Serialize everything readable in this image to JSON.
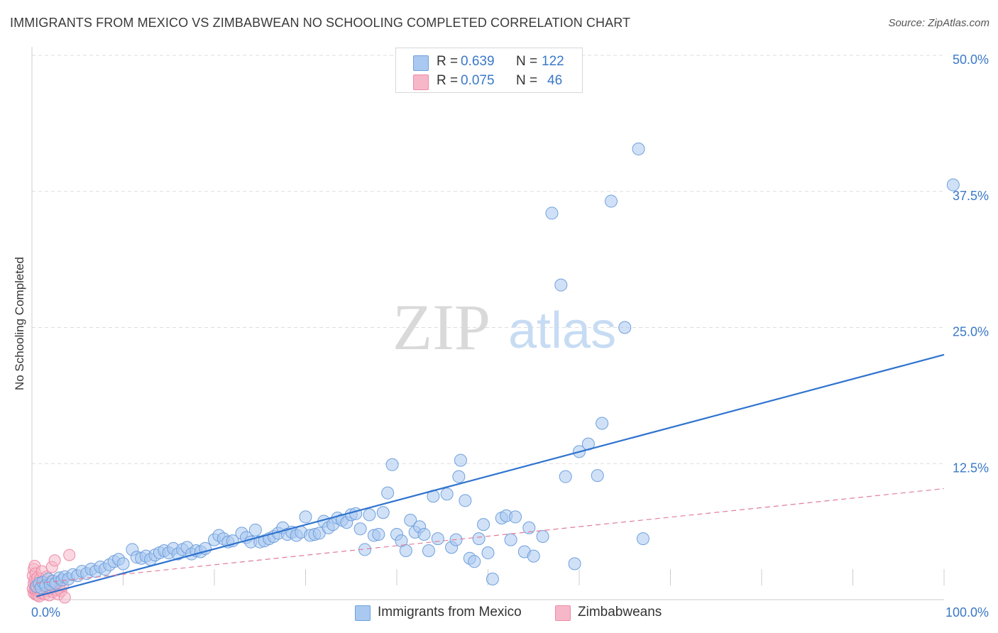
{
  "header": {
    "title": "IMMIGRANTS FROM MEXICO VS ZIMBABWEAN NO SCHOOLING COMPLETED CORRELATION CHART",
    "source": "Source: ZipAtlas.com"
  },
  "watermark": {
    "zip": "ZIP",
    "atlas": "atlas"
  },
  "legend_top": [
    {
      "r_label": "R =",
      "r_value": "0.639",
      "n_label": "N =",
      "n_value": "122"
    },
    {
      "r_label": "R =",
      "r_value": "0.075",
      "n_label": "N =",
      "n_value": "46"
    }
  ],
  "colors": {
    "mexico_fill": "#aac9f0",
    "mexico_stroke": "#6fa0dc",
    "mexico_line": "#2f73cf",
    "zimb_fill": "#f6b8c8",
    "zimb_stroke": "#ee8aa6",
    "zimb_line": "#e07c98",
    "grid": "#dddddd",
    "tick_text": "#3a78c8"
  },
  "chart_data": {
    "type": "scatter",
    "title": "IMMIGRANTS FROM MEXICO VS ZIMBABWEAN NO SCHOOLING COMPLETED CORRELATION CHART",
    "xlabel": "",
    "ylabel": "No Schooling Completed",
    "xlim": [
      0,
      100
    ],
    "ylim": [
      0,
      50
    ],
    "x_tick_labels": [
      "0.0%",
      "100.0%"
    ],
    "y_ticks": [
      12.5,
      25.0,
      37.5,
      50.0
    ],
    "y_tick_labels": [
      "12.5%",
      "25.0%",
      "37.5%",
      "50.0%"
    ],
    "grid": true,
    "legend_position": "top-center",
    "series": [
      {
        "name": "Immigrants from Mexico",
        "r": 0.639,
        "n": 122,
        "trend": {
          "x": [
            0.5,
            100
          ],
          "y": [
            0.3,
            22.5
          ]
        },
        "points": [
          [
            0.5,
            1.2
          ],
          [
            0.8,
            1.5
          ],
          [
            1.0,
            1.1
          ],
          [
            1.2,
            1.6
          ],
          [
            1.5,
            1.3
          ],
          [
            1.8,
            1.9
          ],
          [
            2.0,
            1.4
          ],
          [
            2.3,
            1.7
          ],
          [
            2.6,
            1.5
          ],
          [
            3.0,
            2.0
          ],
          [
            3.3,
            1.8
          ],
          [
            3.6,
            2.1
          ],
          [
            4.0,
            1.9
          ],
          [
            4.5,
            2.3
          ],
          [
            5.0,
            2.2
          ],
          [
            5.5,
            2.6
          ],
          [
            6.0,
            2.4
          ],
          [
            6.5,
            2.8
          ],
          [
            7.0,
            2.6
          ],
          [
            7.5,
            3.0
          ],
          [
            8.0,
            2.8
          ],
          [
            8.5,
            3.2
          ],
          [
            9.0,
            3.5
          ],
          [
            9.5,
            3.7
          ],
          [
            10.0,
            3.3
          ],
          [
            11.0,
            4.6
          ],
          [
            11.5,
            3.9
          ],
          [
            12.0,
            3.8
          ],
          [
            12.5,
            4.0
          ],
          [
            13.0,
            3.7
          ],
          [
            13.5,
            4.1
          ],
          [
            14.0,
            4.3
          ],
          [
            14.5,
            4.5
          ],
          [
            15.0,
            4.3
          ],
          [
            15.5,
            4.7
          ],
          [
            16.0,
            4.2
          ],
          [
            16.5,
            4.6
          ],
          [
            17.0,
            4.8
          ],
          [
            17.5,
            4.2
          ],
          [
            18.0,
            4.5
          ],
          [
            18.5,
            4.4
          ],
          [
            19.0,
            4.7
          ],
          [
            20.0,
            5.5
          ],
          [
            20.5,
            5.9
          ],
          [
            21.0,
            5.6
          ],
          [
            21.5,
            5.3
          ],
          [
            22.0,
            5.4
          ],
          [
            23.0,
            6.1
          ],
          [
            23.5,
            5.7
          ],
          [
            24.0,
            5.3
          ],
          [
            24.5,
            6.4
          ],
          [
            25.0,
            5.3
          ],
          [
            25.5,
            5.4
          ],
          [
            26.0,
            5.6
          ],
          [
            26.5,
            5.8
          ],
          [
            27.0,
            6.1
          ],
          [
            27.5,
            6.6
          ],
          [
            28.0,
            6.0
          ],
          [
            28.5,
            6.2
          ],
          [
            29.0,
            5.9
          ],
          [
            29.5,
            6.2
          ],
          [
            30.0,
            7.6
          ],
          [
            30.5,
            5.9
          ],
          [
            31.0,
            6.0
          ],
          [
            31.5,
            6.1
          ],
          [
            32.0,
            7.2
          ],
          [
            32.5,
            6.6
          ],
          [
            33.0,
            6.9
          ],
          [
            33.5,
            7.5
          ],
          [
            34.0,
            7.3
          ],
          [
            34.5,
            7.1
          ],
          [
            35.0,
            7.8
          ],
          [
            35.5,
            7.9
          ],
          [
            36.0,
            6.5
          ],
          [
            36.5,
            4.6
          ],
          [
            37.0,
            7.8
          ],
          [
            37.5,
            5.9
          ],
          [
            38.0,
            6.0
          ],
          [
            38.5,
            8.0
          ],
          [
            39.0,
            9.8
          ],
          [
            39.5,
            12.4
          ],
          [
            40.0,
            6.0
          ],
          [
            40.5,
            5.4
          ],
          [
            41.0,
            4.5
          ],
          [
            41.5,
            7.3
          ],
          [
            42.0,
            6.2
          ],
          [
            42.5,
            6.7
          ],
          [
            43.0,
            6.0
          ],
          [
            43.5,
            4.5
          ],
          [
            44.0,
            9.5
          ],
          [
            44.5,
            5.6
          ],
          [
            45.5,
            9.7
          ],
          [
            46.0,
            4.8
          ],
          [
            46.5,
            5.5
          ],
          [
            46.8,
            11.3
          ],
          [
            47.0,
            12.8
          ],
          [
            47.5,
            9.1
          ],
          [
            48.0,
            3.8
          ],
          [
            48.5,
            3.5
          ],
          [
            49.0,
            5.6
          ],
          [
            49.5,
            6.9
          ],
          [
            50.0,
            4.3
          ],
          [
            50.5,
            1.9
          ],
          [
            51.5,
            7.5
          ],
          [
            52.0,
            7.7
          ],
          [
            52.5,
            5.5
          ],
          [
            53.0,
            7.6
          ],
          [
            54.0,
            4.4
          ],
          [
            54.5,
            6.6
          ],
          [
            55.0,
            4.0
          ],
          [
            56.0,
            5.8
          ],
          [
            57.0,
            35.5
          ],
          [
            58.0,
            28.9
          ],
          [
            58.5,
            11.3
          ],
          [
            59.5,
            3.3
          ],
          [
            60.0,
            13.6
          ],
          [
            61.0,
            14.3
          ],
          [
            62.0,
            11.4
          ],
          [
            62.5,
            16.2
          ],
          [
            63.5,
            36.6
          ],
          [
            65.0,
            25.0
          ],
          [
            66.5,
            41.4
          ],
          [
            67.0,
            5.6
          ],
          [
            101.0,
            38.1
          ]
        ]
      },
      {
        "name": "Zimbabweans",
        "r": 0.075,
        "n": 46,
        "trend": {
          "x": [
            0.5,
            100
          ],
          "y": [
            1.5,
            10.2
          ]
        },
        "points": [
          [
            0.1,
            1.0
          ],
          [
            0.1,
            2.2
          ],
          [
            0.2,
            0.6
          ],
          [
            0.2,
            1.5
          ],
          [
            0.2,
            2.8
          ],
          [
            0.3,
            0.9
          ],
          [
            0.3,
            1.8
          ],
          [
            0.3,
            3.1
          ],
          [
            0.4,
            0.5
          ],
          [
            0.4,
            1.2
          ],
          [
            0.4,
            2.4
          ],
          [
            0.5,
            0.8
          ],
          [
            0.5,
            1.6
          ],
          [
            0.6,
            0.4
          ],
          [
            0.6,
            1.1
          ],
          [
            0.6,
            2.0
          ],
          [
            0.7,
            0.7
          ],
          [
            0.7,
            1.4
          ],
          [
            0.8,
            0.3
          ],
          [
            0.8,
            1.0
          ],
          [
            0.9,
            1.9
          ],
          [
            1.0,
            0.6
          ],
          [
            1.0,
            1.3
          ],
          [
            1.1,
            2.6
          ],
          [
            1.2,
            0.9
          ],
          [
            1.3,
            1.5
          ],
          [
            1.4,
            0.5
          ],
          [
            1.5,
            1.1
          ],
          [
            1.6,
            2.1
          ],
          [
            1.7,
            0.8
          ],
          [
            1.8,
            1.4
          ],
          [
            1.9,
            0.4
          ],
          [
            2.0,
            1.0
          ],
          [
            2.1,
            1.7
          ],
          [
            2.2,
            3.0
          ],
          [
            2.3,
            0.7
          ],
          [
            2.4,
            1.2
          ],
          [
            2.5,
            3.6
          ],
          [
            2.6,
            0.9
          ],
          [
            2.7,
            1.6
          ],
          [
            2.9,
            0.5
          ],
          [
            3.0,
            1.1
          ],
          [
            3.2,
            0.8
          ],
          [
            3.4,
            1.3
          ],
          [
            3.6,
            0.2
          ],
          [
            4.1,
            4.1
          ]
        ]
      }
    ]
  },
  "legend_bottom": [
    "Immigrants from Mexico",
    "Zimbabweans"
  ]
}
